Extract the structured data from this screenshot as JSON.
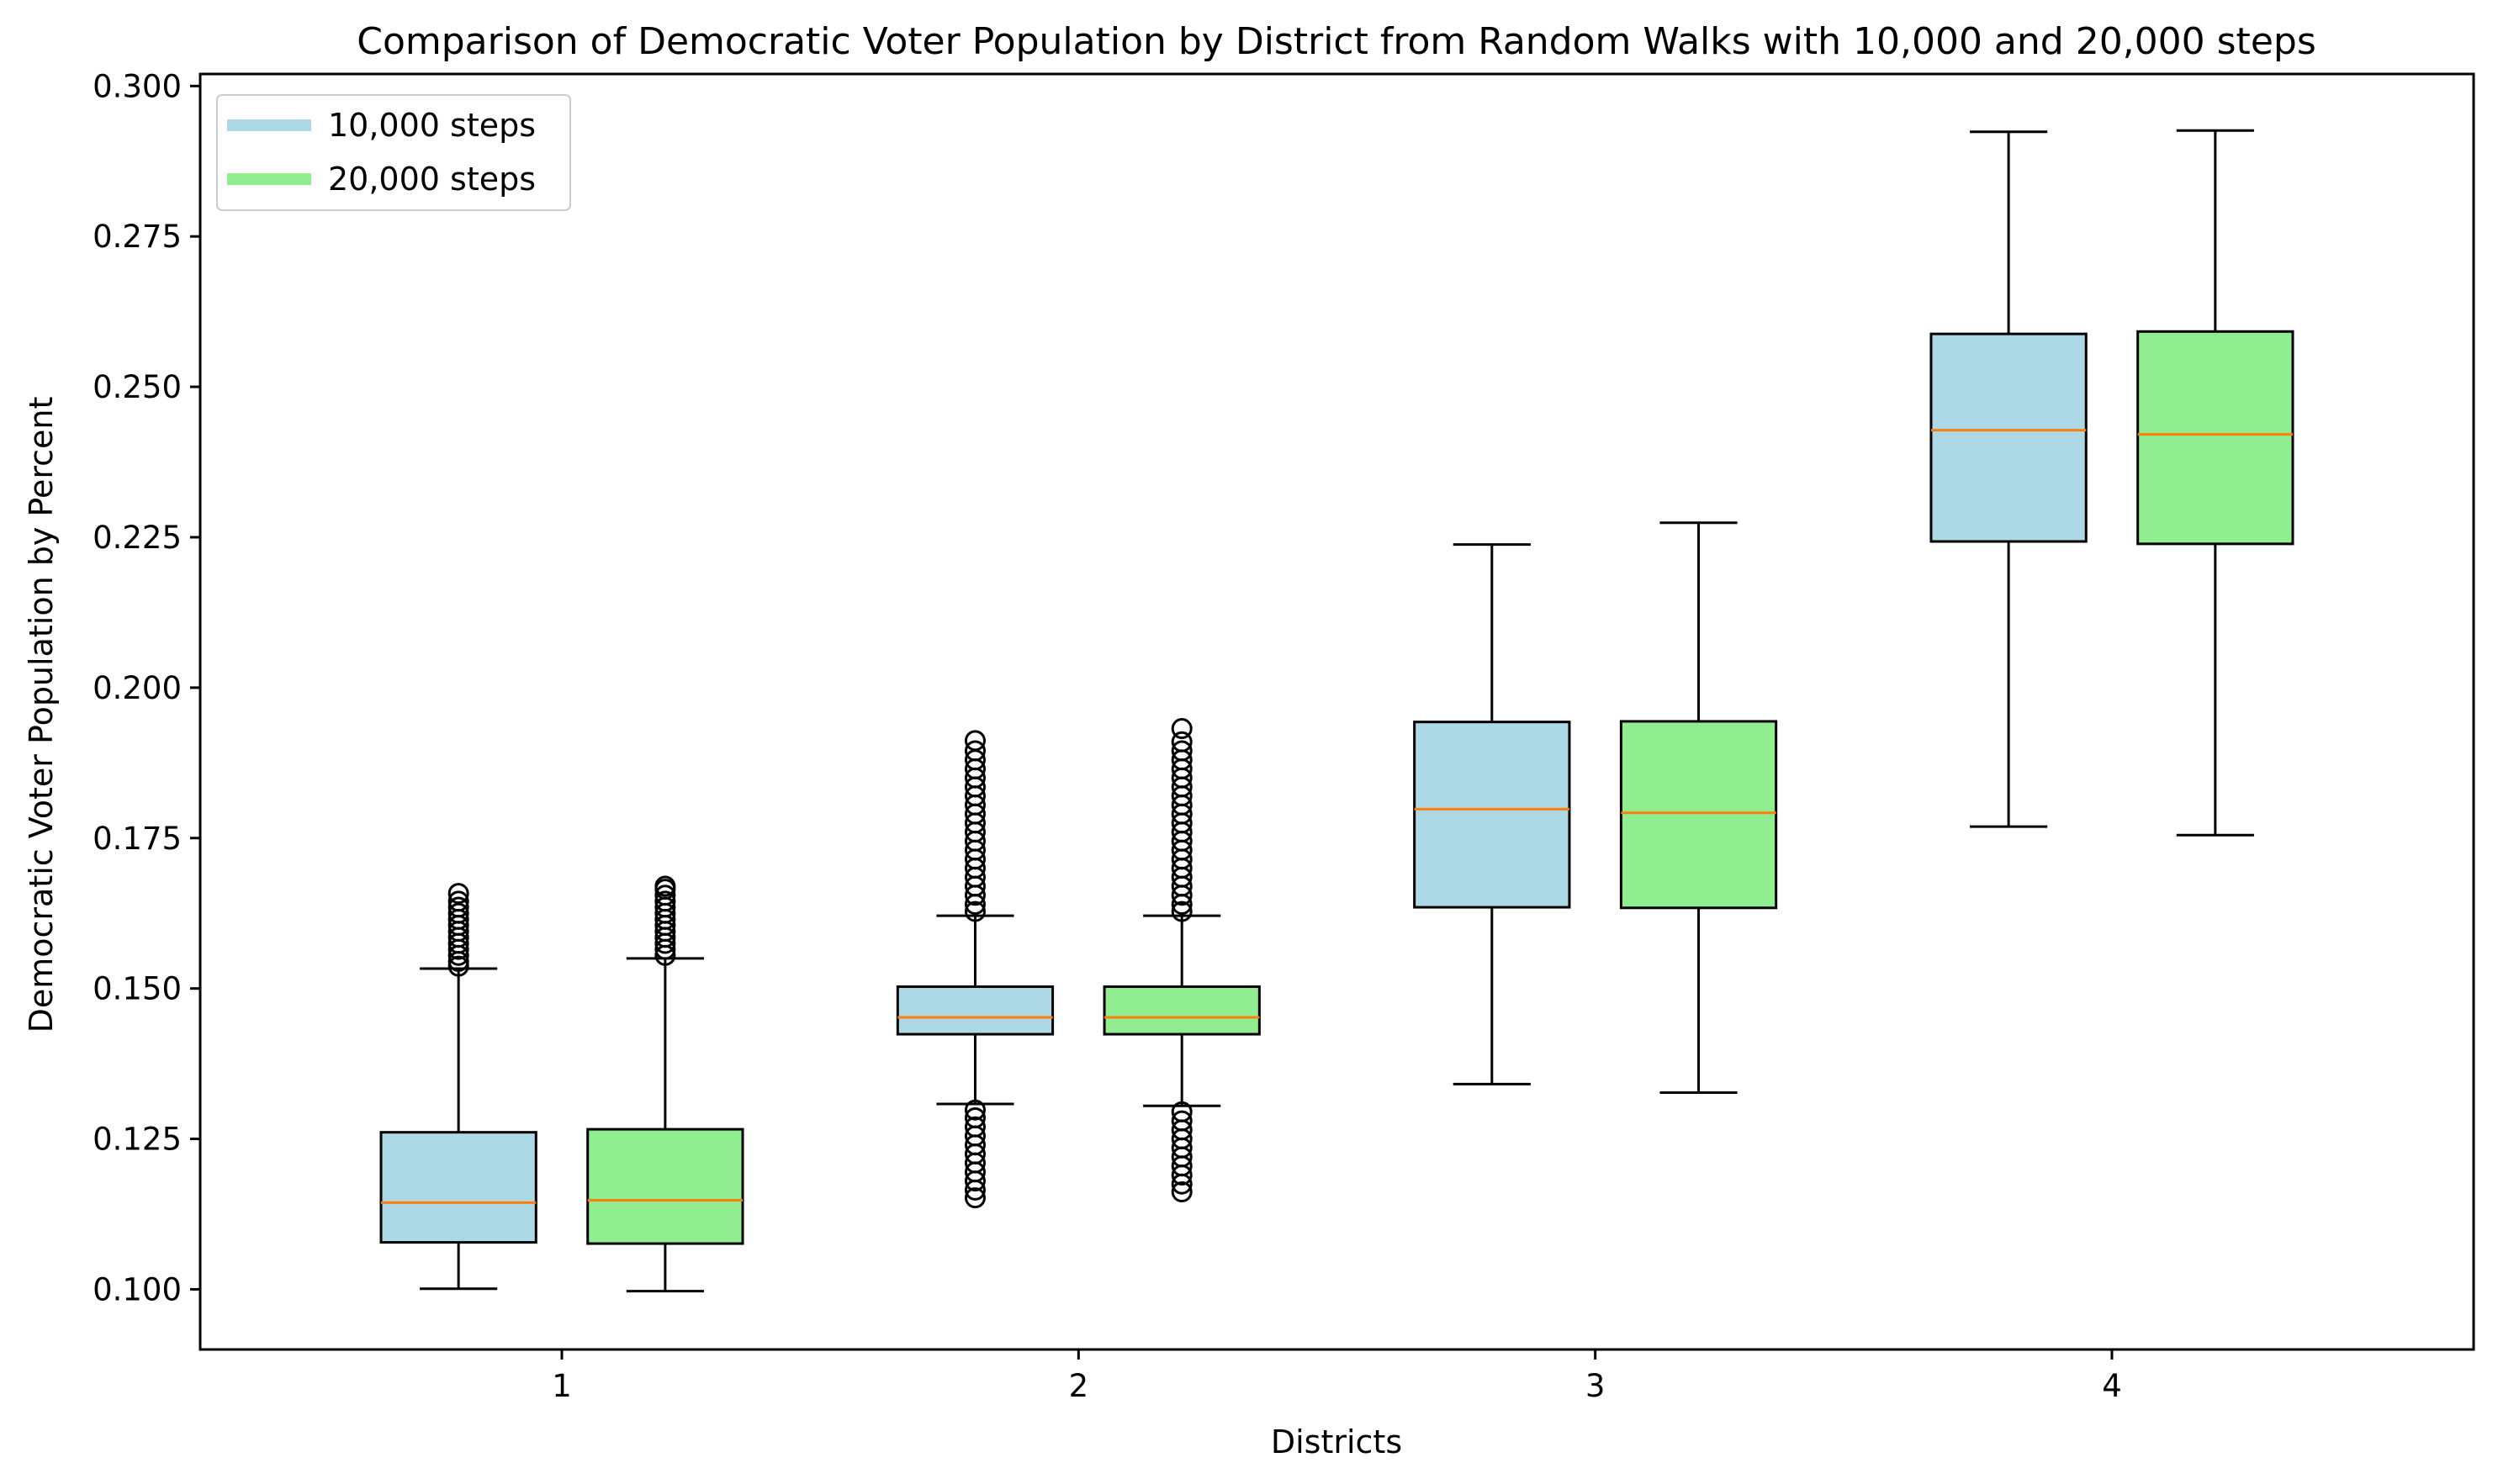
{
  "chart_data": {
    "type": "box",
    "title": "Comparison of Democratic Voter Population by District from Random Walks with 10,000 and 20,000 steps",
    "xlabel": "Districts",
    "ylabel": "Democratic Voter Population by Percent",
    "ylim": [
      0.09,
      0.302
    ],
    "yticks": [
      "0.100",
      "0.125",
      "0.150",
      "0.175",
      "0.200",
      "0.225",
      "0.250",
      "0.275",
      "0.300"
    ],
    "categories": [
      "1",
      "2",
      "3",
      "4"
    ],
    "grid": false,
    "legend": "upper-left",
    "series": [
      {
        "name": "10,000 steps",
        "color": "#add8e6",
        "boxes": [
          {
            "whisker_low": 0.1001,
            "q1": 0.1078,
            "median": 0.1144,
            "q3": 0.1261,
            "whisker_high": 0.1533,
            "outliers_high": [
              0.1537,
              0.1545,
              0.1555,
              0.1565,
              0.1575,
              0.1585,
              0.1595,
              0.1605,
              0.1615,
              0.1625,
              0.1635,
              0.1645,
              0.1658
            ],
            "outliers_low": []
          },
          {
            "whisker_low": 0.1308,
            "q1": 0.1424,
            "median": 0.1452,
            "q3": 0.1503,
            "whisker_high": 0.1621,
            "outliers_high": [
              0.1628,
              0.164,
              0.1655,
              0.167,
              0.1685,
              0.17,
              0.1715,
              0.173,
              0.1745,
              0.176,
              0.1775,
              0.179,
              0.1805,
              0.182,
              0.1835,
              0.185,
              0.1865,
              0.188,
              0.1895,
              0.1912
            ],
            "outliers_low": [
              0.1298,
              0.1285,
              0.127,
              0.1255,
              0.124,
              0.1225,
              0.121,
              0.1195,
              0.118,
              0.1165,
              0.1152
            ]
          },
          {
            "whisker_low": 0.1341,
            "q1": 0.1635,
            "median": 0.1798,
            "q3": 0.1943,
            "whisker_high": 0.2238,
            "outliers_high": [],
            "outliers_low": []
          },
          {
            "whisker_low": 0.1769,
            "q1": 0.2243,
            "median": 0.2428,
            "q3": 0.2588,
            "whisker_high": 0.2924,
            "outliers_high": [],
            "outliers_low": []
          }
        ]
      },
      {
        "name": "20,000 steps",
        "color": "#90ee90",
        "boxes": [
          {
            "whisker_low": 0.0997,
            "q1": 0.1076,
            "median": 0.1148,
            "q3": 0.1266,
            "whisker_high": 0.155,
            "outliers_high": [
              0.1555,
              0.1565,
              0.1575,
              0.1585,
              0.1595,
              0.1605,
              0.1615,
              0.1625,
              0.1635,
              0.1645,
              0.1655,
              0.1665,
              0.167
            ],
            "outliers_low": []
          },
          {
            "whisker_low": 0.1305,
            "q1": 0.1424,
            "median": 0.1452,
            "q3": 0.1503,
            "whisker_high": 0.1621,
            "outliers_high": [
              0.1628,
              0.164,
              0.1655,
              0.167,
              0.1685,
              0.17,
              0.1715,
              0.173,
              0.1745,
              0.176,
              0.1775,
              0.179,
              0.1805,
              0.182,
              0.1835,
              0.185,
              0.1865,
              0.188,
              0.1895,
              0.191,
              0.1932
            ],
            "outliers_low": [
              0.1295,
              0.128,
              0.1265,
              0.125,
              0.1235,
              0.122,
              0.1205,
              0.119,
              0.1175,
              0.1162
            ]
          },
          {
            "whisker_low": 0.1327,
            "q1": 0.1634,
            "median": 0.1792,
            "q3": 0.1944,
            "whisker_high": 0.2274,
            "outliers_high": [],
            "outliers_low": []
          },
          {
            "whisker_low": 0.1755,
            "q1": 0.2239,
            "median": 0.2421,
            "q3": 0.2592,
            "whisker_high": 0.2926,
            "outliers_high": [],
            "outliers_low": []
          }
        ]
      }
    ],
    "median_color": "#ff7f0e"
  }
}
